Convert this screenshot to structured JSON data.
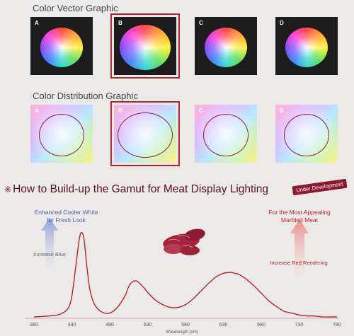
{
  "sections": {
    "vector_title": "Color Vector Graphic",
    "distribution_title": "Color Distribution Graphic"
  },
  "tiles": [
    {
      "letter": "A",
      "selected": false
    },
    {
      "letter": "B",
      "selected": true
    },
    {
      "letter": "C",
      "selected": false
    },
    {
      "letter": "D",
      "selected": false
    }
  ],
  "gamut": {
    "mark": "※",
    "title": "How to Build-up the Gamut for Meat Display Lighting",
    "badge": "Under Development"
  },
  "annotations": {
    "left_heading_1": "Enhanced Cooler White",
    "left_heading_2": "for Fresh Look",
    "left_arrow": "Increase Blue",
    "right_heading_1": "For the Most Appealing",
    "right_heading_2": "Marbled Meat",
    "right_arrow": "Increase Red Rendering"
  },
  "colors": {
    "curve": "#b8242e",
    "accent": "#8c1832",
    "blue_arrow": "#b7c2e3",
    "red_arrow": "#f2b9b5",
    "meat": "#a5253e"
  },
  "chart_data": {
    "type": "line",
    "xlabel": "Wavelength (nm)",
    "ylabel": "",
    "x_ticks": [
      380,
      430,
      480,
      530,
      580,
      630,
      680,
      730,
      780
    ],
    "xlim": [
      380,
      780
    ],
    "ylim": [
      0,
      1
    ],
    "series": [
      {
        "x": [
          380,
          400,
          415,
          425,
          430,
          435,
          440,
          443,
          446,
          450,
          454,
          460,
          470,
          480,
          490,
          500,
          505,
          510,
          515,
          520,
          525,
          530,
          540,
          550,
          560,
          570,
          580,
          590,
          600,
          610,
          620,
          630,
          640,
          645,
          650,
          660,
          670,
          680,
          690,
          700,
          710,
          720,
          730,
          740,
          750,
          760,
          770,
          780
        ],
        "y": [
          0.0,
          0.01,
          0.03,
          0.09,
          0.22,
          0.52,
          0.83,
          0.89,
          0.82,
          0.52,
          0.28,
          0.13,
          0.05,
          0.04,
          0.1,
          0.22,
          0.32,
          0.37,
          0.38,
          0.35,
          0.31,
          0.26,
          0.18,
          0.13,
          0.1,
          0.1,
          0.13,
          0.19,
          0.27,
          0.35,
          0.42,
          0.46,
          0.47,
          0.46,
          0.45,
          0.4,
          0.33,
          0.25,
          0.17,
          0.11,
          0.06,
          0.04,
          0.02,
          0.01,
          0.01,
          0.0,
          0.0,
          0.0
        ]
      }
    ]
  }
}
